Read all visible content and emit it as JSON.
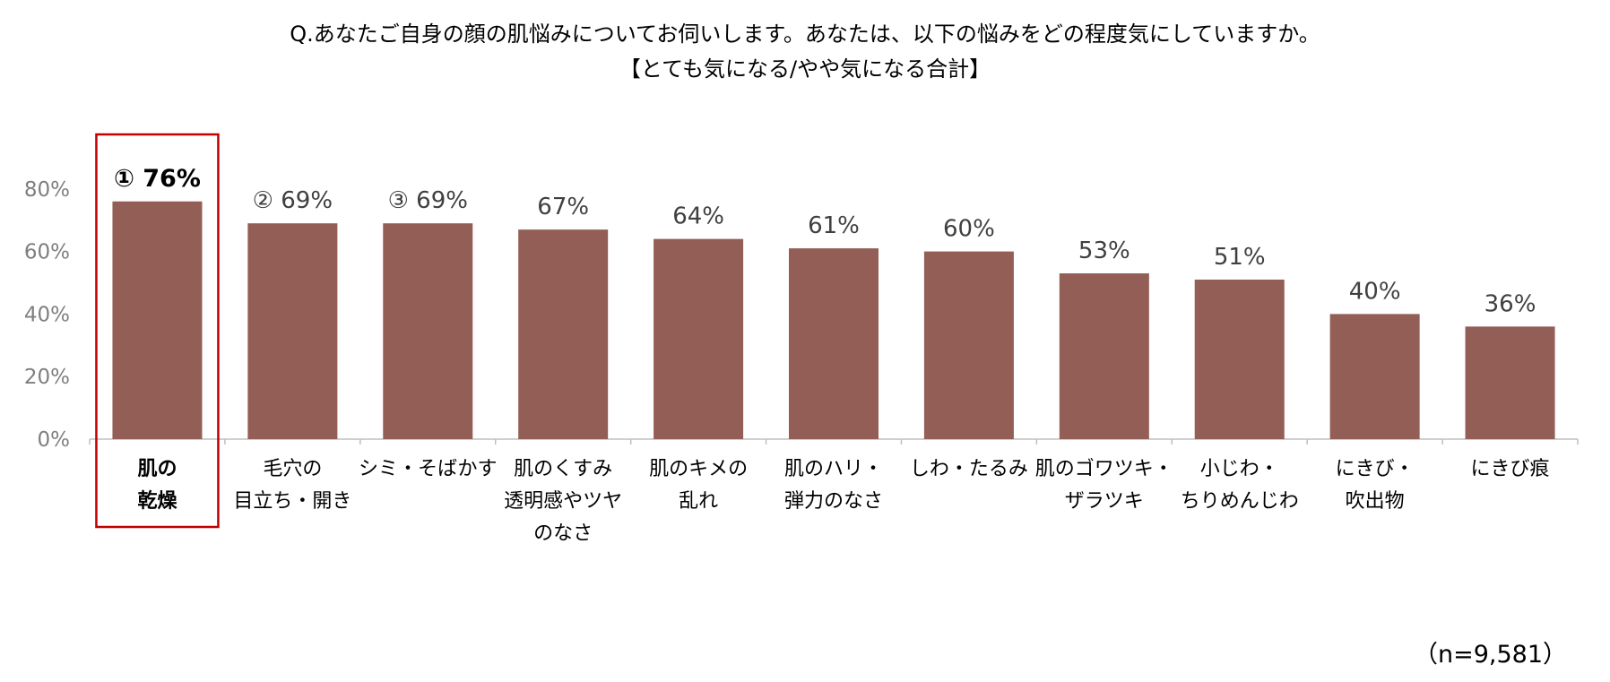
{
  "title_line1": "Q.あなたご自身の顔の肌悩みについてお伺いします。あなたは、以下の悩みをどの程度気にしていますか。",
  "title_line2": "【とても気になる/やや気になる合計】",
  "sample_note": "（n=9,581）",
  "colors": {
    "bar": "#925e55",
    "highlight": "#c00000",
    "axis": "#bfbfbf",
    "tick_text": "#7f7f7f"
  },
  "chart_data": {
    "type": "bar",
    "categories": [
      [
        "肌の",
        "乾燥"
      ],
      [
        "毛穴の",
        "目立ち・開き"
      ],
      [
        "シミ・そばかす"
      ],
      [
        "肌のくすみ",
        "透明感やツヤ",
        "のなさ"
      ],
      [
        "肌のキメの",
        "乱れ"
      ],
      [
        "肌のハリ・",
        "弾力のなさ"
      ],
      [
        "しわ・たるみ"
      ],
      [
        "肌のゴワツキ・",
        "ザラツキ"
      ],
      [
        "小じわ・",
        "ちりめんじわ"
      ],
      [
        "にきび・",
        "吹出物"
      ],
      [
        "にきび痕"
      ]
    ],
    "values": [
      76,
      69,
      69,
      67,
      64,
      61,
      60,
      53,
      51,
      40,
      36
    ],
    "value_labels": [
      "① 76%",
      "② 69%",
      "③ 69%",
      "67%",
      "64%",
      "61%",
      "60%",
      "53%",
      "51%",
      "40%",
      "36%"
    ],
    "y_ticks": [
      "0%",
      "20%",
      "40%",
      "60%",
      "80%"
    ],
    "ylim": [
      0,
      100
    ],
    "highlight_index": 0,
    "grid": false,
    "legend": "none"
  }
}
